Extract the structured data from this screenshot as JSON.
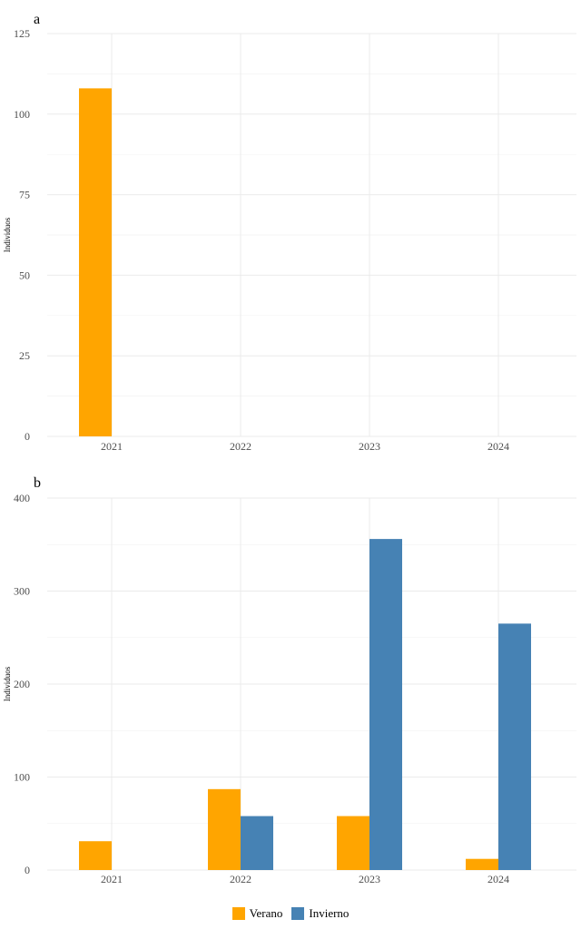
{
  "colors": {
    "verano": "#FFA500",
    "invierno": "#4682B4"
  },
  "legend": [
    {
      "label": "Verano",
      "color": "#FFA500"
    },
    {
      "label": "Invierno",
      "color": "#4682B4"
    }
  ],
  "chart_data": [
    {
      "type": "bar",
      "panel_label": "a",
      "title": "",
      "xlabel": "",
      "ylabel": "Individuos",
      "categories": [
        "2021",
        "2022",
        "2023",
        "2024"
      ],
      "ylim": [
        0,
        125
      ],
      "yticks": [
        0,
        25,
        50,
        75,
        100,
        125
      ],
      "grid": true,
      "series": [
        {
          "name": "Verano",
          "color": "#FFA500",
          "values": [
            108,
            0,
            0,
            0
          ]
        },
        {
          "name": "Invierno",
          "color": "#4682B4",
          "values": [
            0,
            0,
            0,
            0
          ]
        }
      ]
    },
    {
      "type": "bar",
      "panel_label": "b",
      "title": "",
      "xlabel": "",
      "ylabel": "Individuos",
      "categories": [
        "2021",
        "2022",
        "2023",
        "2024"
      ],
      "ylim": [
        0,
        400
      ],
      "yticks": [
        0,
        100,
        200,
        300,
        400
      ],
      "grid": true,
      "series": [
        {
          "name": "Verano",
          "color": "#FFA500",
          "values": [
            31,
            87,
            58,
            12
          ]
        },
        {
          "name": "Invierno",
          "color": "#4682B4",
          "values": [
            0,
            58,
            356,
            265
          ]
        }
      ]
    }
  ]
}
